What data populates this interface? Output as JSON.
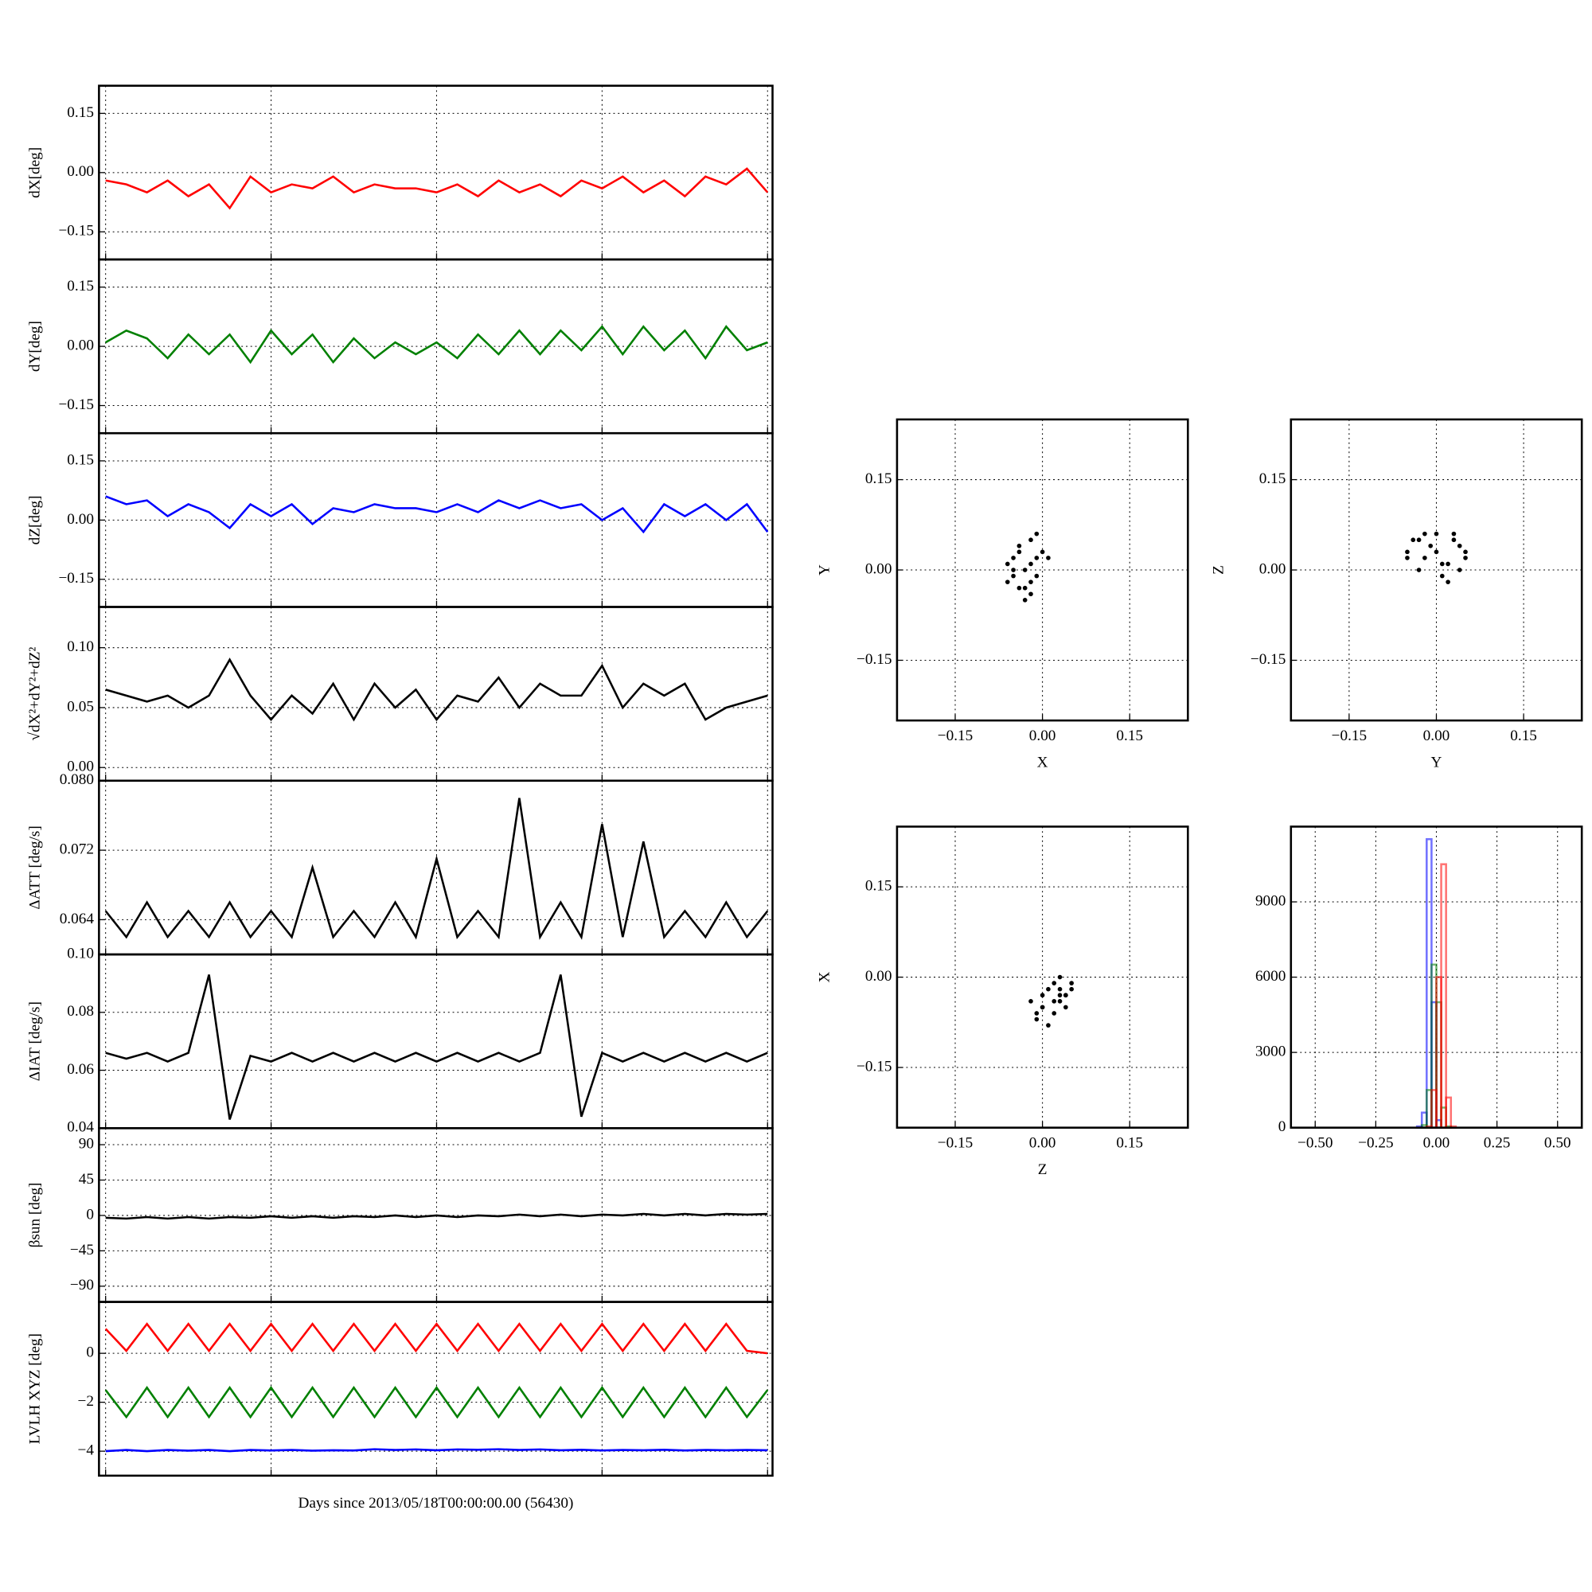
{
  "chart_data": [
    {
      "type": "line",
      "ylabel": "dX[deg]",
      "grid": true,
      "xlim": [
        -0.04,
        4.03
      ],
      "xticks": [
        0,
        1,
        2,
        3,
        4
      ],
      "ylim": [
        -0.22,
        0.22
      ],
      "yticks": [
        {
          "value": -0.15,
          "label": "−0.15"
        },
        {
          "value": 0,
          "label": "0.00"
        },
        0.15
      ],
      "x": [
        0,
        0.125,
        0.25,
        0.375,
        0.5,
        0.625,
        0.75,
        0.875,
        1,
        1.125,
        1.25,
        1.375,
        1.5,
        1.625,
        1.75,
        1.875,
        2,
        2.125,
        2.25,
        2.375,
        2.5,
        2.625,
        2.75,
        2.875,
        3,
        3.125,
        3.25,
        3.375,
        3.5,
        3.625,
        3.75,
        3.875,
        4
      ],
      "series": [
        {
          "color": "#ff0000",
          "values": [
            -0.02,
            -0.03,
            -0.05,
            -0.02,
            -0.06,
            -0.03,
            -0.09,
            -0.01,
            -0.05,
            -0.03,
            -0.04,
            -0.01,
            -0.05,
            -0.03,
            -0.04,
            -0.04,
            -0.05,
            -0.03,
            -0.06,
            -0.02,
            -0.05,
            -0.03,
            -0.06,
            -0.02,
            -0.04,
            -0.01,
            -0.05,
            -0.02,
            -0.06,
            -0.01,
            -0.03,
            0.01,
            -0.05
          ]
        }
      ]
    },
    {
      "type": "line",
      "ylabel": "dY[deg]",
      "grid": true,
      "xlim": [
        -0.04,
        4.03
      ],
      "xticks": [
        0,
        1,
        2,
        3,
        4
      ],
      "ylim": [
        -0.22,
        0.22
      ],
      "yticks": [
        {
          "value": -0.15,
          "label": "−0.15"
        },
        {
          "value": 0,
          "label": "0.00"
        },
        0.15
      ],
      "x": [
        0,
        0.125,
        0.25,
        0.375,
        0.5,
        0.625,
        0.75,
        0.875,
        1,
        1.125,
        1.25,
        1.375,
        1.5,
        1.625,
        1.75,
        1.875,
        2,
        2.125,
        2.25,
        2.375,
        2.5,
        2.625,
        2.75,
        2.875,
        3,
        3.125,
        3.25,
        3.375,
        3.5,
        3.625,
        3.75,
        3.875,
        4
      ],
      "series": [
        {
          "color": "#008000",
          "values": [
            0.01,
            0.04,
            0.02,
            -0.03,
            0.03,
            -0.02,
            0.03,
            -0.04,
            0.04,
            -0.02,
            0.03,
            -0.04,
            0.02,
            -0.03,
            0.01,
            -0.02,
            0.01,
            -0.03,
            0.03,
            -0.02,
            0.04,
            -0.02,
            0.04,
            -0.01,
            0.05,
            -0.02,
            0.05,
            -0.01,
            0.04,
            -0.03,
            0.05,
            -0.01,
            0.01
          ]
        }
      ]
    },
    {
      "type": "line",
      "ylabel": "dZ[deg]",
      "grid": true,
      "xlim": [
        -0.04,
        4.03
      ],
      "xticks": [
        0,
        1,
        2,
        3,
        4
      ],
      "ylim": [
        -0.22,
        0.22
      ],
      "yticks": [
        {
          "value": -0.15,
          "label": "−0.15"
        },
        {
          "value": 0,
          "label": "0.00"
        },
        0.15
      ],
      "x": [
        0,
        0.125,
        0.25,
        0.375,
        0.5,
        0.625,
        0.75,
        0.875,
        1,
        1.125,
        1.25,
        1.375,
        1.5,
        1.625,
        1.75,
        1.875,
        2,
        2.125,
        2.25,
        2.375,
        2.5,
        2.625,
        2.75,
        2.875,
        3,
        3.125,
        3.25,
        3.375,
        3.5,
        3.625,
        3.75,
        3.875,
        4
      ],
      "series": [
        {
          "color": "#0000ff",
          "values": [
            0.06,
            0.04,
            0.05,
            0.01,
            0.04,
            0.02,
            -0.02,
            0.04,
            0.01,
            0.04,
            -0.01,
            0.03,
            0.02,
            0.04,
            0.03,
            0.03,
            0.02,
            0.04,
            0.02,
            0.05,
            0.03,
            0.05,
            0.03,
            0.04,
            0.0,
            0.03,
            -0.03,
            0.04,
            0.01,
            0.04,
            0.0,
            0.04,
            -0.03
          ]
        }
      ]
    },
    {
      "type": "line",
      "ylabel": "√dX²+dY²+dZ²",
      "grid": true,
      "xlim": [
        -0.04,
        4.03
      ],
      "xticks": [
        0,
        1,
        2,
        3,
        4
      ],
      "ylim": [
        -0.011,
        0.134
      ],
      "yticks": [
        {
          "value": 0,
          "label": "0.00"
        },
        0.05,
        {
          "value": 0.1,
          "label": "0.10"
        }
      ],
      "x": [
        0,
        0.125,
        0.25,
        0.375,
        0.5,
        0.625,
        0.75,
        0.875,
        1,
        1.125,
        1.25,
        1.375,
        1.5,
        1.625,
        1.75,
        1.875,
        2,
        2.125,
        2.25,
        2.375,
        2.5,
        2.625,
        2.75,
        2.875,
        3,
        3.125,
        3.25,
        3.375,
        3.5,
        3.625,
        3.75,
        3.875,
        4
      ],
      "series": [
        {
          "color": "#000000",
          "values": [
            0.065,
            0.06,
            0.055,
            0.06,
            0.05,
            0.06,
            0.09,
            0.06,
            0.04,
            0.06,
            0.045,
            0.07,
            0.04,
            0.07,
            0.05,
            0.065,
            0.04,
            0.06,
            0.055,
            0.075,
            0.05,
            0.07,
            0.06,
            0.06,
            0.085,
            0.05,
            0.07,
            0.06,
            0.07,
            0.04,
            0.05,
            0.055,
            0.06
          ]
        }
      ]
    },
    {
      "type": "line",
      "ylabel": "ΔATT [deg/s]",
      "grid": true,
      "xlim": [
        -0.04,
        4.03
      ],
      "xticks": [
        0,
        1,
        2,
        3,
        4
      ],
      "ylim": [
        0.06,
        0.08
      ],
      "yticks": [
        0.064,
        0.072,
        {
          "value": 0.08,
          "label": "0.080"
        }
      ],
      "x": [
        0,
        0.125,
        0.25,
        0.375,
        0.5,
        0.625,
        0.75,
        0.875,
        1,
        1.125,
        1.25,
        1.375,
        1.5,
        1.625,
        1.75,
        1.875,
        2,
        2.125,
        2.25,
        2.375,
        2.5,
        2.625,
        2.75,
        2.875,
        3,
        3.125,
        3.25,
        3.375,
        3.5,
        3.625,
        3.75,
        3.875,
        4
      ],
      "series": [
        {
          "color": "#000000",
          "values": [
            0.065,
            0.062,
            0.066,
            0.062,
            0.065,
            0.062,
            0.066,
            0.062,
            0.065,
            0.062,
            0.07,
            0.062,
            0.065,
            0.062,
            0.066,
            0.062,
            0.071,
            0.062,
            0.065,
            0.062,
            0.078,
            0.062,
            0.066,
            0.062,
            0.075,
            0.062,
            0.073,
            0.062,
            0.065,
            0.062,
            0.066,
            0.062,
            0.065
          ]
        }
      ]
    },
    {
      "type": "line",
      "ylabel": "ΔIAT [deg/s]",
      "grid": true,
      "xlim": [
        -0.04,
        4.03
      ],
      "xticks": [
        0,
        1,
        2,
        3,
        4
      ],
      "ylim": [
        0.04,
        0.1
      ],
      "yticks": [
        0.04,
        0.06,
        0.08,
        {
          "value": 0.1,
          "label": "0.10"
        }
      ],
      "x": [
        0,
        0.125,
        0.25,
        0.375,
        0.5,
        0.625,
        0.75,
        0.875,
        1,
        1.125,
        1.25,
        1.375,
        1.5,
        1.625,
        1.75,
        1.875,
        2,
        2.125,
        2.25,
        2.375,
        2.5,
        2.625,
        2.75,
        2.875,
        3,
        3.125,
        3.25,
        3.375,
        3.5,
        3.625,
        3.75,
        3.875,
        4
      ],
      "series": [
        {
          "color": "#000000",
          "values": [
            0.066,
            0.064,
            0.066,
            0.063,
            0.066,
            0.093,
            0.043,
            0.065,
            0.063,
            0.066,
            0.063,
            0.066,
            0.063,
            0.066,
            0.063,
            0.066,
            0.063,
            0.066,
            0.063,
            0.066,
            0.063,
            0.066,
            0.093,
            0.044,
            0.066,
            0.063,
            0.066,
            0.063,
            0.066,
            0.063,
            0.066,
            0.063,
            0.066
          ]
        }
      ]
    },
    {
      "type": "line",
      "ylabel": "βsun [deg]",
      "grid": true,
      "xlim": [
        -0.04,
        4.03
      ],
      "xticks": [
        0,
        1,
        2,
        3,
        4
      ],
      "ylim": [
        -110,
        111
      ],
      "yticks": [
        {
          "value": -90,
          "label": "−90"
        },
        {
          "value": -45,
          "label": "−45"
        },
        0,
        45,
        90
      ],
      "x": [
        0,
        0.125,
        0.25,
        0.375,
        0.5,
        0.625,
        0.75,
        0.875,
        1,
        1.125,
        1.25,
        1.375,
        1.5,
        1.625,
        1.75,
        1.875,
        2,
        2.125,
        2.25,
        2.375,
        2.5,
        2.625,
        2.75,
        2.875,
        3,
        3.125,
        3.25,
        3.375,
        3.5,
        3.625,
        3.75,
        3.875,
        4
      ],
      "series": [
        {
          "color": "#000000",
          "values": [
            -3,
            -4,
            -2,
            -4,
            -2,
            -4,
            -2,
            -3,
            -1,
            -3,
            -1,
            -3,
            -1,
            -2,
            0,
            -2,
            0,
            -2,
            0,
            -1,
            1,
            -1,
            1,
            -1,
            1,
            0,
            2,
            0,
            2,
            0,
            2,
            1,
            2
          ]
        }
      ]
    },
    {
      "type": "line",
      "ylabel": "LVLH XYZ [deg]",
      "xlabel": "Days since 2013/05/18T00:00:00.00 (56430)",
      "grid": true,
      "xlim": [
        -0.04,
        4.03
      ],
      "xticks": [
        0,
        1,
        2,
        3,
        4
      ],
      "ylim": [
        -5,
        2.1
      ],
      "yticks": [
        {
          "value": -4,
          "label": "−4"
        },
        {
          "value": -2,
          "label": "−2"
        },
        0
      ],
      "x": [
        0,
        0.125,
        0.25,
        0.375,
        0.5,
        0.625,
        0.75,
        0.875,
        1,
        1.125,
        1.25,
        1.375,
        1.5,
        1.625,
        1.75,
        1.875,
        2,
        2.125,
        2.25,
        2.375,
        2.5,
        2.625,
        2.75,
        2.875,
        3,
        3.125,
        3.25,
        3.375,
        3.5,
        3.625,
        3.75,
        3.875,
        4
      ],
      "series": [
        {
          "color": "#ff0000",
          "values": [
            1.0,
            0.1,
            1.2,
            0.1,
            1.2,
            0.1,
            1.2,
            0.1,
            1.2,
            0.1,
            1.2,
            0.1,
            1.2,
            0.1,
            1.2,
            0.1,
            1.2,
            0.1,
            1.2,
            0.1,
            1.2,
            0.1,
            1.2,
            0.1,
            1.2,
            0.1,
            1.2,
            0.1,
            1.2,
            0.1,
            1.2,
            0.1,
            0.0
          ]
        },
        {
          "color": "#008000",
          "values": [
            -1.5,
            -2.6,
            -1.4,
            -2.6,
            -1.4,
            -2.6,
            -1.4,
            -2.6,
            -1.4,
            -2.6,
            -1.4,
            -2.6,
            -1.4,
            -2.6,
            -1.4,
            -2.6,
            -1.4,
            -2.6,
            -1.4,
            -2.6,
            -1.4,
            -2.6,
            -1.4,
            -2.6,
            -1.4,
            -2.6,
            -1.4,
            -2.6,
            -1.4,
            -2.6,
            -1.4,
            -2.6,
            -1.5
          ]
        },
        {
          "color": "#0000ff",
          "values": [
            -4.0,
            -3.95,
            -4.0,
            -3.95,
            -3.98,
            -3.95,
            -4.0,
            -3.95,
            -3.97,
            -3.95,
            -3.98,
            -3.96,
            -3.97,
            -3.92,
            -3.95,
            -3.93,
            -3.96,
            -3.93,
            -3.94,
            -3.92,
            -3.95,
            -3.93,
            -3.96,
            -3.94,
            -3.97,
            -3.95,
            -3.96,
            -3.94,
            -3.97,
            -3.95,
            -3.96,
            -3.95,
            -3.96
          ]
        }
      ]
    },
    {
      "type": "scatter",
      "xlabel": "X",
      "ylabel": "Y",
      "grid": true,
      "color": "#000000",
      "xlim": [
        -0.25,
        0.25
      ],
      "ylim": [
        -0.25,
        0.25
      ],
      "xticks": [
        {
          "value": -0.15,
          "label": "−0.15"
        },
        {
          "value": 0,
          "label": "0.00"
        },
        0.15
      ],
      "yticks": [
        {
          "value": -0.15,
          "label": "−0.15"
        },
        {
          "value": 0,
          "label": "0.00"
        },
        0.15
      ],
      "x": [
        -0.05,
        -0.02,
        -0.04,
        -0.01,
        -0.06,
        -0.03,
        0.0,
        -0.04,
        -0.02,
        -0.05,
        -0.01,
        -0.03,
        -0.06,
        -0.02,
        0.01,
        -0.04,
        -0.03,
        -0.01,
        -0.05,
        -0.02
      ],
      "y": [
        0.0,
        0.05,
        -0.03,
        0.02,
        0.01,
        -0.05,
        0.03,
        0.04,
        -0.02,
        -0.01,
        0.06,
        0.0,
        -0.02,
        -0.04,
        0.02,
        0.03,
        -0.03,
        -0.01,
        0.02,
        0.01
      ]
    },
    {
      "type": "scatter",
      "xlabel": "Y",
      "ylabel": "Z",
      "grid": true,
      "color": "#000000",
      "xlim": [
        -0.25,
        0.25
      ],
      "ylim": [
        -0.25,
        0.25
      ],
      "xticks": [
        {
          "value": -0.15,
          "label": "−0.15"
        },
        {
          "value": 0,
          "label": "0.00"
        },
        0.15
      ],
      "yticks": [
        {
          "value": -0.15,
          "label": "−0.15"
        },
        {
          "value": 0,
          "label": "0.00"
        },
        0.15
      ],
      "x": [
        -0.05,
        0.0,
        0.04,
        -0.03,
        0.02,
        0.05,
        -0.04,
        0.01,
        -0.02,
        0.03,
        0.0,
        -0.05,
        0.04,
        -0.01,
        0.02,
        -0.03,
        0.05,
        0.01,
        -0.02,
        0.03
      ],
      "y": [
        0.03,
        0.06,
        0.04,
        0.0,
        0.01,
        0.02,
        0.05,
        -0.01,
        0.06,
        0.05,
        0.03,
        0.02,
        0.0,
        0.04,
        -0.02,
        0.05,
        0.03,
        0.01,
        0.02,
        0.06
      ]
    },
    {
      "type": "scatter",
      "xlabel": "Z",
      "ylabel": "X",
      "grid": true,
      "color": "#000000",
      "xlim": [
        -0.25,
        0.25
      ],
      "ylim": [
        -0.25,
        0.25
      ],
      "xticks": [
        {
          "value": -0.15,
          "label": "−0.15"
        },
        {
          "value": 0,
          "label": "0.00"
        },
        0.15
      ],
      "yticks": [
        {
          "value": -0.15,
          "label": "−0.15"
        },
        {
          "value": 0,
          "label": "0.00"
        },
        0.15
      ],
      "x": [
        0.0,
        0.03,
        0.05,
        -0.01,
        0.02,
        0.04,
        0.01,
        0.03,
        -0.02,
        0.05,
        0.02,
        0.0,
        0.04,
        0.01,
        0.03,
        -0.01,
        0.02,
        0.04,
        0.0,
        0.03
      ],
      "y": [
        -0.05,
        -0.02,
        -0.01,
        -0.06,
        -0.04,
        -0.03,
        -0.08,
        0.0,
        -0.04,
        -0.02,
        -0.06,
        -0.03,
        -0.05,
        -0.02,
        -0.04,
        -0.07,
        -0.01,
        -0.03,
        -0.05,
        -0.03
      ]
    },
    {
      "type": "histogram",
      "grid": true,
      "xlim": [
        -0.6,
        0.6
      ],
      "ylim": [
        0,
        12000
      ],
      "xticks": [
        {
          "value": -0.5,
          "label": "−0.50"
        },
        {
          "value": -0.25,
          "label": "−0.25"
        },
        {
          "value": 0,
          "label": "0.00"
        },
        0.25,
        {
          "value": 0.5,
          "label": "0.50"
        }
      ],
      "yticks": [
        0,
        3000,
        6000,
        9000
      ],
      "bins": [
        -0.12,
        -0.1,
        -0.08,
        -0.06,
        -0.04,
        -0.02,
        0,
        0.02,
        0.04,
        0.06,
        0.08,
        0.1,
        0.12
      ],
      "series": [
        {
          "color": "#0000ff",
          "values": [
            0,
            0,
            50,
            600,
            11500,
            5000,
            300,
            0,
            0,
            0,
            0,
            0
          ]
        },
        {
          "color": "#008000",
          "values": [
            0,
            0,
            0,
            100,
            1500,
            6500,
            5000,
            800,
            50,
            0,
            0,
            0
          ]
        },
        {
          "color": "#ff0000",
          "values": [
            0,
            0,
            0,
            0,
            50,
            1500,
            6000,
            10500,
            1200,
            50,
            0,
            0
          ]
        }
      ]
    }
  ]
}
